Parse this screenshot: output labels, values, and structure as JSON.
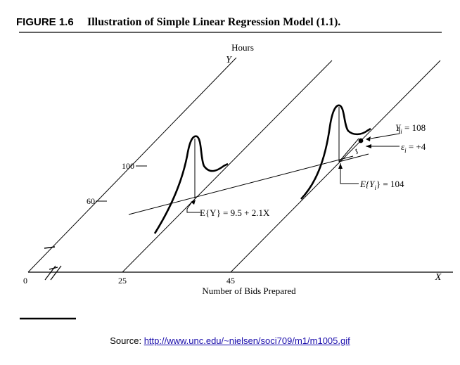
{
  "figure": {
    "number": "FIGURE 1.6",
    "title": "Illustration of Simple Linear Regression Model (1.1)."
  },
  "axes": {
    "y_unit": "Hours",
    "y_letter": "Y",
    "x_letter": "X",
    "x_label": "Number of Bids Prepared",
    "origin": "0",
    "x_ticks": [
      "25",
      "45"
    ],
    "y_ticks": [
      "100",
      "60"
    ]
  },
  "annotations": {
    "regression_label": "E{Y} = 9.5 + 2.1X",
    "observed": "Y",
    "observed_sub": "i",
    "observed_value": " = 108",
    "error": "ε",
    "error_sub": "i",
    "error_value": " = +4",
    "expected": "E{Y",
    "expected_sub": "i",
    "expected_value": "} = 104"
  },
  "source": {
    "prefix": "Source: ",
    "url": "http://www.unc.edu/~nielsen/soci709/m1/m1005.gif"
  }
}
